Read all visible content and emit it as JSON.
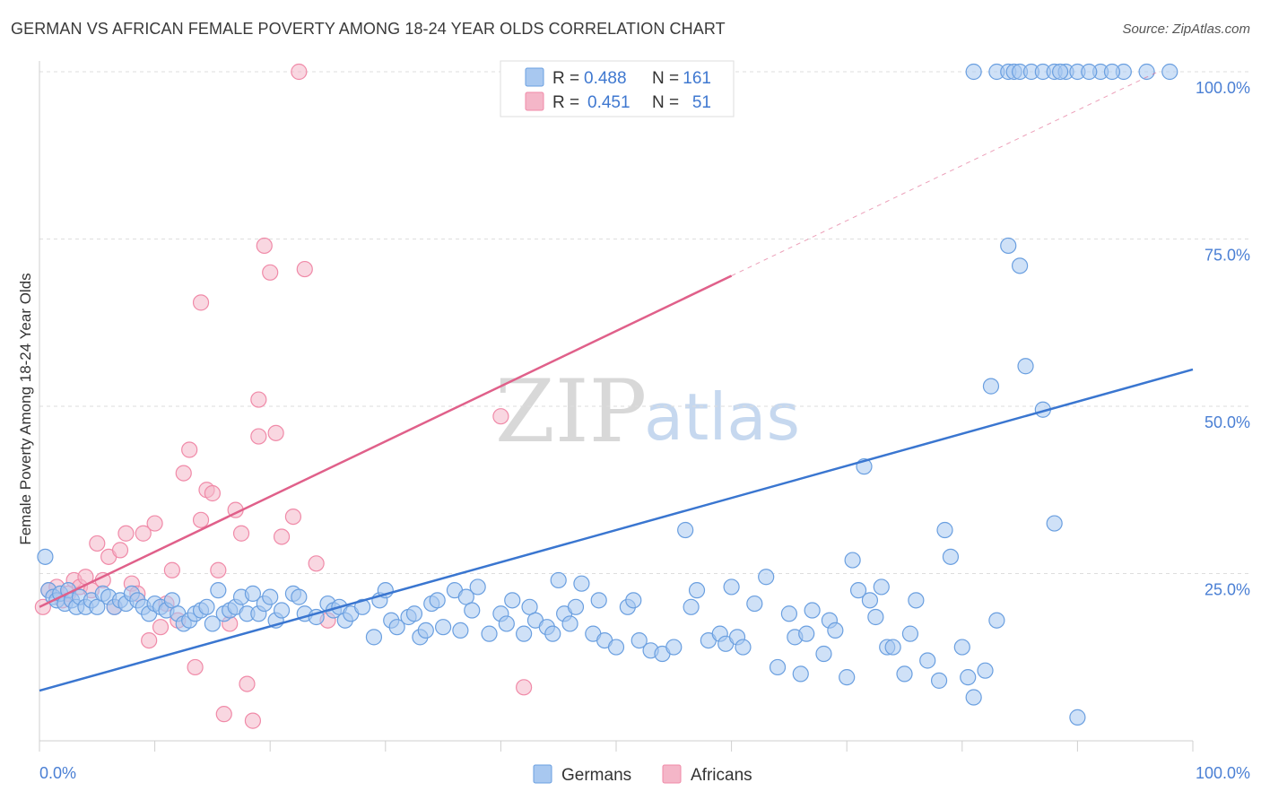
{
  "title": "GERMAN VS AFRICAN FEMALE POVERTY AMONG 18-24 YEAR OLDS CORRELATION CHART",
  "source": "Source: ZipAtlas.com",
  "watermark": {
    "zip": "ZIP",
    "atlas": "atlas"
  },
  "legend_top": {
    "rows": [
      {
        "r_label": "R =",
        "r_value": "0.488",
        "n_label": "N =",
        "n_value": "161",
        "color": "#a8c8f0"
      },
      {
        "r_label": "R =",
        "r_value": "0.451",
        "n_label": "N =",
        "n_value": "51",
        "color": "#f4b6c8"
      }
    ]
  },
  "legend_bottom": [
    {
      "label": "Germans",
      "color": "#a8c8f0"
    },
    {
      "label": "Africans",
      "color": "#f4b6c8"
    }
  ],
  "chart_data": {
    "type": "scatter",
    "title": "GERMAN VS AFRICAN FEMALE POVERTY AMONG 18-24 YEAR OLDS CORRELATION CHART",
    "xlabel": "",
    "ylabel": "Female Poverty Among 18-24 Year Olds",
    "xlim": [
      0,
      100
    ],
    "ylim": [
      0,
      100
    ],
    "x_tick_labels": [
      "0.0%",
      "100.0%"
    ],
    "y_tick_labels": [
      "25.0%",
      "50.0%",
      "75.0%",
      "100.0%"
    ],
    "y_ticks": [
      25,
      50,
      75,
      100
    ],
    "grid": true,
    "legend_position": "top-center",
    "series": [
      {
        "name": "Germans",
        "color": "#6a9fe0",
        "fill": "#a8c8f0",
        "trend": {
          "x0": 0,
          "y0": 7.5,
          "x1": 100,
          "y1": 55.5,
          "color": "#3a76d0"
        },
        "points": [
          [
            0.5,
            27.5
          ],
          [
            0.8,
            22.5
          ],
          [
            1.2,
            21.5
          ],
          [
            1.5,
            21
          ],
          [
            1.8,
            22
          ],
          [
            2.2,
            20.5
          ],
          [
            2.5,
            22.5
          ],
          [
            2.8,
            21
          ],
          [
            3.2,
            20
          ],
          [
            3.5,
            21.5
          ],
          [
            4,
            20
          ],
          [
            4.5,
            21
          ],
          [
            5,
            20
          ],
          [
            5.5,
            22
          ],
          [
            6,
            21.5
          ],
          [
            6.5,
            20
          ],
          [
            7,
            21
          ],
          [
            7.5,
            20.5
          ],
          [
            8,
            22
          ],
          [
            8.5,
            21
          ],
          [
            9,
            20
          ],
          [
            9.5,
            19
          ],
          [
            10,
            20.5
          ],
          [
            10.5,
            20
          ],
          [
            11,
            19.5
          ],
          [
            11.5,
            21
          ],
          [
            12,
            19
          ],
          [
            12.5,
            17.5
          ],
          [
            13,
            18
          ],
          [
            13.5,
            19
          ],
          [
            14,
            19.5
          ],
          [
            14.5,
            20
          ],
          [
            15,
            17.5
          ],
          [
            15.5,
            22.5
          ],
          [
            16,
            19
          ],
          [
            16.5,
            19.5
          ],
          [
            17,
            20
          ],
          [
            17.5,
            21.5
          ],
          [
            18,
            19
          ],
          [
            18.5,
            22
          ],
          [
            19,
            19
          ],
          [
            19.5,
            20.5
          ],
          [
            20,
            21.5
          ],
          [
            20.5,
            18
          ],
          [
            21,
            19.5
          ],
          [
            22,
            22
          ],
          [
            22.5,
            21.5
          ],
          [
            23,
            19
          ],
          [
            24,
            18.5
          ],
          [
            25,
            20.5
          ],
          [
            25.5,
            19.5
          ],
          [
            26,
            20
          ],
          [
            26.5,
            18
          ],
          [
            27,
            19
          ],
          [
            28,
            20
          ],
          [
            29,
            15.5
          ],
          [
            29.5,
            21
          ],
          [
            30,
            22.5
          ],
          [
            30.5,
            18
          ],
          [
            31,
            17
          ],
          [
            32,
            18.5
          ],
          [
            32.5,
            19
          ],
          [
            33,
            15.5
          ],
          [
            33.5,
            16.5
          ],
          [
            34,
            20.5
          ],
          [
            34.5,
            21
          ],
          [
            35,
            17
          ],
          [
            36,
            22.5
          ],
          [
            36.5,
            16.5
          ],
          [
            37,
            21.5
          ],
          [
            37.5,
            19.5
          ],
          [
            38,
            23
          ],
          [
            39,
            16
          ],
          [
            40,
            19
          ],
          [
            40.5,
            17.5
          ],
          [
            41,
            21
          ],
          [
            42,
            16
          ],
          [
            42.5,
            20
          ],
          [
            43,
            18
          ],
          [
            44,
            17
          ],
          [
            44.5,
            16
          ],
          [
            45,
            24
          ],
          [
            45.5,
            19
          ],
          [
            46,
            17.5
          ],
          [
            46.5,
            20
          ],
          [
            47,
            23.5
          ],
          [
            48,
            16
          ],
          [
            48.5,
            21
          ],
          [
            49,
            15
          ],
          [
            50,
            14
          ],
          [
            51,
            20
          ],
          [
            51.5,
            21
          ],
          [
            52,
            15
          ],
          [
            53,
            13.5
          ],
          [
            54,
            13
          ],
          [
            55,
            14
          ],
          [
            56,
            31.5
          ],
          [
            56.5,
            20
          ],
          [
            57,
            22.5
          ],
          [
            58,
            15
          ],
          [
            59,
            16
          ],
          [
            59.5,
            14.5
          ],
          [
            60,
            23
          ],
          [
            60.5,
            15.5
          ],
          [
            61,
            14
          ],
          [
            62,
            20.5
          ],
          [
            63,
            24.5
          ],
          [
            64,
            11
          ],
          [
            65,
            19
          ],
          [
            65.5,
            15.5
          ],
          [
            66,
            10
          ],
          [
            66.5,
            16
          ],
          [
            67,
            19.5
          ],
          [
            68,
            13
          ],
          [
            68.5,
            18
          ],
          [
            69,
            16.5
          ],
          [
            70,
            9.5
          ],
          [
            70.5,
            27
          ],
          [
            71,
            22.5
          ],
          [
            72,
            21
          ],
          [
            72.5,
            18.5
          ],
          [
            73,
            23
          ],
          [
            73.5,
            14
          ],
          [
            74,
            14
          ],
          [
            75,
            10
          ],
          [
            75.5,
            16
          ],
          [
            76,
            21
          ],
          [
            77,
            12
          ],
          [
            78,
            9
          ],
          [
            78.5,
            31.5
          ],
          [
            79,
            27.5
          ],
          [
            80,
            14
          ],
          [
            80.5,
            9.5
          ],
          [
            81,
            6.5
          ],
          [
            82,
            10.5
          ],
          [
            82.5,
            53
          ],
          [
            83,
            18
          ],
          [
            84,
            74
          ],
          [
            85,
            71
          ],
          [
            85.5,
            56
          ],
          [
            87,
            49.5
          ],
          [
            88,
            32.5
          ],
          [
            90,
            3.5
          ],
          [
            71.5,
            41
          ],
          [
            81,
            100
          ],
          [
            83,
            100
          ],
          [
            84,
            100
          ],
          [
            84.5,
            100
          ],
          [
            85,
            100
          ],
          [
            86,
            100
          ],
          [
            87,
            100
          ],
          [
            88,
            100
          ],
          [
            89,
            100
          ],
          [
            90,
            100
          ],
          [
            92,
            100
          ],
          [
            94,
            100
          ],
          [
            96,
            100
          ],
          [
            98,
            100
          ],
          [
            88.5,
            100
          ],
          [
            91,
            100
          ],
          [
            93,
            100
          ]
        ]
      },
      {
        "name": "Africans",
        "color": "#f08aa8",
        "fill": "#f4b6c8",
        "trend": {
          "x0": 0,
          "y0": 20,
          "x1": 60,
          "y1": 69.5,
          "color": "#e0608a"
        },
        "points": [
          [
            0.3,
            20
          ],
          [
            0.8,
            22.5
          ],
          [
            1.5,
            23
          ],
          [
            2,
            21
          ],
          [
            2.5,
            22
          ],
          [
            3,
            24
          ],
          [
            3.5,
            23
          ],
          [
            4,
            24.5
          ],
          [
            4.5,
            22.5
          ],
          [
            5,
            29.5
          ],
          [
            5.5,
            24
          ],
          [
            6,
            27.5
          ],
          [
            6.5,
            20
          ],
          [
            7,
            28.5
          ],
          [
            7.5,
            31
          ],
          [
            8,
            23.5
          ],
          [
            8.5,
            22
          ],
          [
            9,
            31
          ],
          [
            9.5,
            15
          ],
          [
            10,
            32.5
          ],
          [
            10.5,
            17
          ],
          [
            11,
            20.5
          ],
          [
            11.5,
            25.5
          ],
          [
            12,
            18
          ],
          [
            12.5,
            40
          ],
          [
            13,
            43.5
          ],
          [
            13.5,
            11
          ],
          [
            14,
            33
          ],
          [
            14.5,
            37.5
          ],
          [
            15,
            37
          ],
          [
            15.5,
            25.5
          ],
          [
            16,
            4
          ],
          [
            16.5,
            17.5
          ],
          [
            17,
            34.5
          ],
          [
            17.5,
            31
          ],
          [
            18,
            8.5
          ],
          [
            18.5,
            3
          ],
          [
            19,
            51
          ],
          [
            19.5,
            74
          ],
          [
            20,
            70
          ],
          [
            20.5,
            46
          ],
          [
            21,
            30.5
          ],
          [
            22,
            33.5
          ],
          [
            22.5,
            100
          ],
          [
            23,
            70.5
          ],
          [
            24,
            26.5
          ],
          [
            25,
            18
          ],
          [
            40,
            48.5
          ],
          [
            42,
            8
          ],
          [
            14,
            65.5
          ],
          [
            19,
            45.5
          ]
        ]
      }
    ]
  }
}
